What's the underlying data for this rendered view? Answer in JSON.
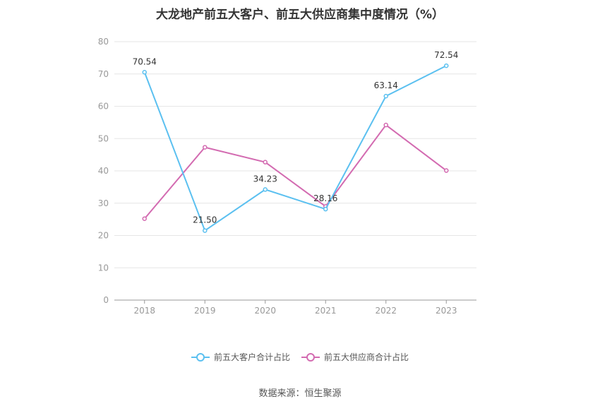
{
  "chart_data": {
    "type": "line",
    "title": "大龙地产前五大客户、前五大供应商集中度情况（%）",
    "categories": [
      "2018",
      "2019",
      "2020",
      "2021",
      "2022",
      "2023"
    ],
    "ylim": [
      0,
      80
    ],
    "yticks": [
      0,
      10,
      20,
      30,
      40,
      50,
      60,
      70,
      80
    ],
    "grid": true,
    "legend_position": "bottom",
    "series": [
      {
        "name": "前五大客户合计占比",
        "color": "#5bc0f0",
        "values": [
          70.54,
          21.5,
          34.23,
          28.16,
          63.14,
          72.54
        ],
        "labels": [
          "70.54",
          "21.50",
          "34.23",
          "28.16",
          "63.14",
          "72.54"
        ]
      },
      {
        "name": "前五大供应商合计占比",
        "color": "#d36bb1",
        "values": [
          25.2,
          47.3,
          42.7,
          29.0,
          54.2,
          40.1
        ],
        "labels": []
      }
    ]
  },
  "source": "数据来源：恒生聚源"
}
